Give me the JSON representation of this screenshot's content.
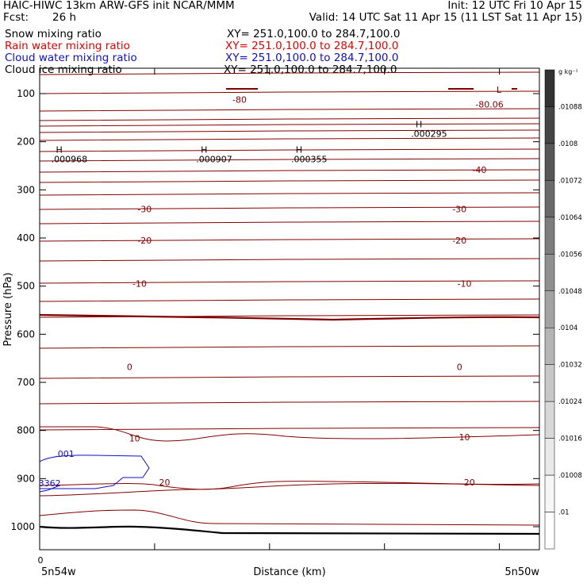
{
  "header": {
    "line1_left": "HAIC-HIWC 13km ARW-GFS init   NCAR/MMM",
    "line1_right": "Init: 12 UTC Fri 10 Apr 15",
    "fcst_label": "Fcst:",
    "fcst_value": "26 h",
    "valid": "Valid: 14 UTC Sat 11 Apr 15 (11 LST Sat 11 Apr 15)",
    "fields": [
      {
        "name": "Snow mixing ratio",
        "xy": "XY= 251.0,100.0 to 284.7,100.0",
        "color": "#000000"
      },
      {
        "name": "Rain water mixing ratio",
        "xy": "XY= 251.0,100.0 to 284.7,100.0",
        "color": "#e00000"
      },
      {
        "name": "Cloud water mixing ratio",
        "xy": "XY= 251.0,100.0 to 284.7,100.0",
        "color": "#1010c0"
      },
      {
        "name": "Cloud ice mixing ratio",
        "xy": "XY= 251.0,100.0 to 284.7,100.0",
        "color": "#000000"
      }
    ]
  },
  "chart_data": {
    "type": "contour",
    "ylabel": "Pressure (hPa)",
    "xlabel": "Distance (km)",
    "x_tick_label": "0",
    "x_left_label": "5n54w",
    "x_right_label": "5n50w",
    "y_ticks": [
      100,
      200,
      300,
      400,
      500,
      600,
      700,
      800,
      900,
      1000
    ],
    "colorbar_unit": "g kg⁻¹",
    "colorbar_labels": [
      ".01088",
      ".0108",
      ".01072",
      ".01064",
      ".01056",
      ".01048",
      ".0104",
      ".01032",
      ".01024",
      ".01016",
      ".01008",
      ".01"
    ],
    "colorbar_colors": [
      "#333333",
      "#454545",
      "#575757",
      "#6a6a6a",
      "#7d7d7d",
      "#909090",
      "#a3a3a3",
      "#b5b5b5",
      "#c7c7c7",
      "#d8d8d8",
      "#e9e9e9",
      "#f6f6f6",
      "#ffffff"
    ],
    "contour_color": "#800000",
    "cloud_color": "#1010c0",
    "contour_labels": [
      {
        "text": "-80",
        "x": 0.4,
        "p": 112
      },
      {
        "text": "-80.06",
        "x": 0.9,
        "p": 122
      },
      {
        "text": "-40",
        "x": 0.88,
        "p": 258
      },
      {
        "text": "-30",
        "x": 0.21,
        "p": 340
      },
      {
        "text": "-30",
        "x": 0.84,
        "p": 340
      },
      {
        "text": "-20",
        "x": 0.21,
        "p": 405
      },
      {
        "text": "-20",
        "x": 0.84,
        "p": 405
      },
      {
        "text": "-10",
        "x": 0.2,
        "p": 495
      },
      {
        "text": "-10",
        "x": 0.85,
        "p": 495
      },
      {
        "text": "0",
        "x": 0.18,
        "p": 668
      },
      {
        "text": "0",
        "x": 0.84,
        "p": 668
      },
      {
        "text": "10",
        "x": 0.19,
        "p": 816
      },
      {
        "text": "10",
        "x": 0.85,
        "p": 814
      },
      {
        "text": "20",
        "x": 0.25,
        "p": 908
      },
      {
        "text": "20",
        "x": 0.86,
        "p": 908
      },
      {
        "text": ".001",
        "x": 0.05,
        "p": 848
      },
      {
        "text": "3362",
        "x": 0.02,
        "p": 909
      }
    ],
    "extrema": [
      {
        "type": "L",
        "value": "",
        "x": 0.9,
        "p": 108
      },
      {
        "type": "H",
        "value": ".000295",
        "x": 0.74,
        "p": 180
      },
      {
        "type": "H",
        "value": ".000968",
        "x": 0.02,
        "p": 233
      },
      {
        "type": "H",
        "value": ".000907",
        "x": 0.31,
        "p": 233
      },
      {
        "type": "H",
        "value": ".000355",
        "x": 0.5,
        "p": 233
      }
    ]
  }
}
